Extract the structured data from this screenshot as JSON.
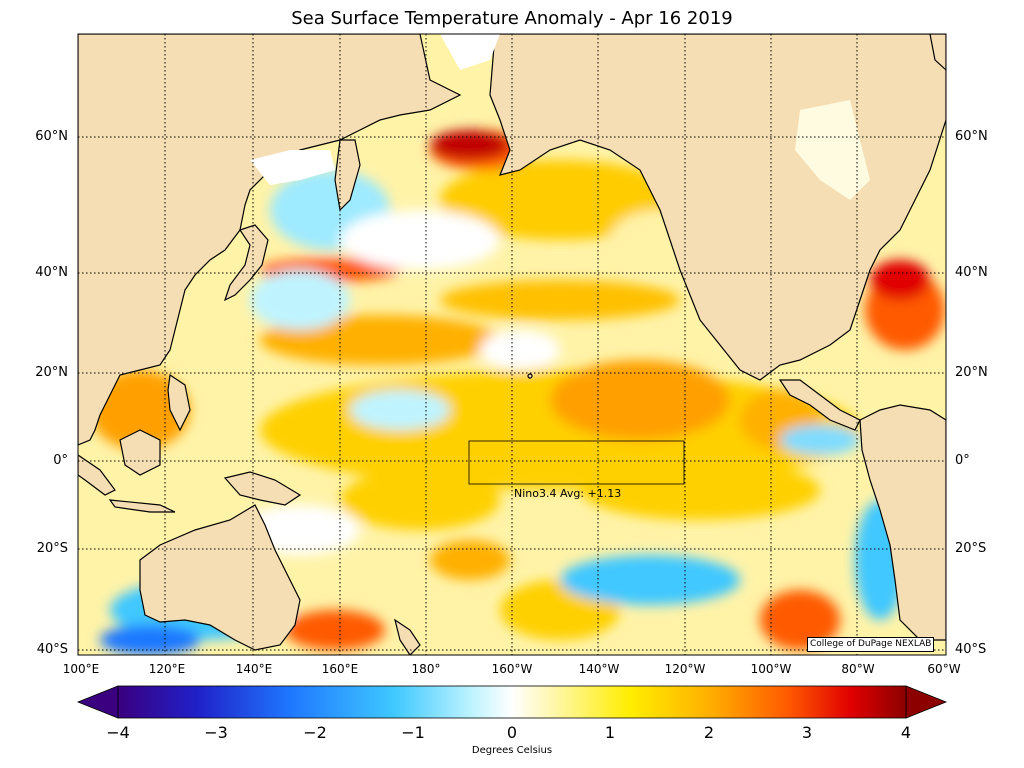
{
  "title": "Sea Surface Temperature Anomaly - Apr 16 2019",
  "lat_labels": [
    "60°N",
    "40°N",
    "20°N",
    "0°",
    "20°S",
    "40°S"
  ],
  "lon_labels": [
    "100°E",
    "120°E",
    "140°E",
    "160°E",
    "180°",
    "160°W",
    "140°W",
    "120°W",
    "100°W",
    "80°W",
    "60°W"
  ],
  "colorbar": {
    "ticks": [
      "−4",
      "−3",
      "−2",
      "−1",
      "0",
      "1",
      "2",
      "3",
      "4"
    ],
    "label": "Degrees Celsius",
    "range": [
      -4,
      4
    ],
    "colors": [
      "#3a007f",
      "#2020c8",
      "#1f78ff",
      "#3fc8ff",
      "#bff4ff",
      "#ffffff",
      "#fff7b0",
      "#ffee00",
      "#ffb000",
      "#ff5a00",
      "#e00000",
      "#8c0000"
    ]
  },
  "nino_box_label": "Nino3.4 Avg: +1.13",
  "credit": "College of DuPage NEXLAB",
  "land_color": "#f5deb3"
}
